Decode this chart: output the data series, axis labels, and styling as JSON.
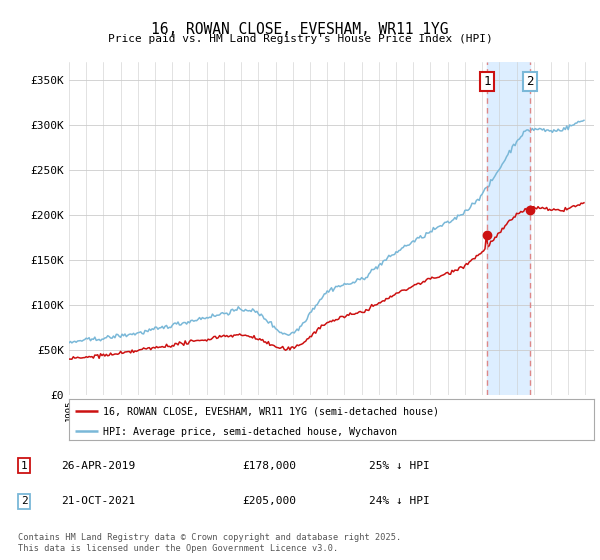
{
  "title": "16, ROWAN CLOSE, EVESHAM, WR11 1YG",
  "subtitle": "Price paid vs. HM Land Registry's House Price Index (HPI)",
  "ylim": [
    0,
    370000
  ],
  "yticks": [
    0,
    50000,
    100000,
    150000,
    200000,
    250000,
    300000,
    350000
  ],
  "ytick_labels": [
    "£0",
    "£50K",
    "£100K",
    "£150K",
    "£200K",
    "£250K",
    "£300K",
    "£350K"
  ],
  "hpi_color": "#7ab8d8",
  "price_color": "#cc1111",
  "dashed_color": "#dd8888",
  "shade_color": "#ddeeff",
  "t1_year": 2019.29,
  "t1_price": 178000,
  "t2_year": 2021.79,
  "t2_price": 205000,
  "legend_line1": "16, ROWAN CLOSE, EVESHAM, WR11 1YG (semi-detached house)",
  "legend_line2": "HPI: Average price, semi-detached house, Wychavon",
  "footer": "Contains HM Land Registry data © Crown copyright and database right 2025.\nThis data is licensed under the Open Government Licence v3.0.",
  "grid_color": "#cccccc",
  "bg_color": "white"
}
